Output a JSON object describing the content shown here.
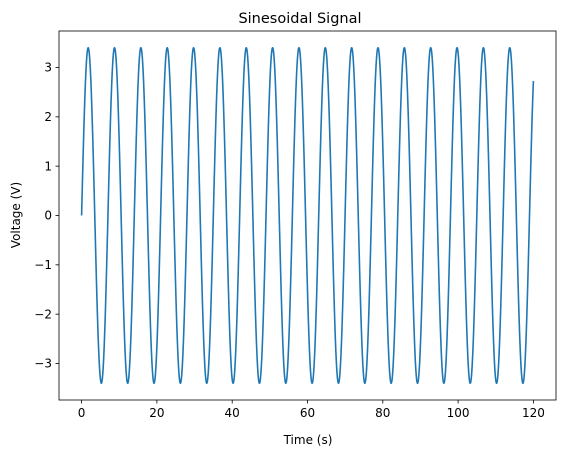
{
  "chart_data": {
    "type": "line",
    "title": "Sinesoidal Signal",
    "xlabel": "Time (s)",
    "ylabel": "Voltage (V)",
    "xlim": [
      -6,
      126
    ],
    "ylim": [
      -3.74,
      3.74
    ],
    "x_ticks": [
      0,
      20,
      40,
      60,
      80,
      100,
      120
    ],
    "y_ticks": [
      -3,
      -2,
      -1,
      0,
      1,
      2,
      3
    ],
    "y_tick_labels": [
      "−3",
      "−2",
      "−1",
      "0",
      "1",
      "2",
      "3"
    ],
    "grid": false,
    "series": [
      {
        "function": "sine",
        "amplitude": 3.4,
        "frequency_hz": 0.1429,
        "phase": 0,
        "x_start": 0,
        "x_end": 120,
        "color": "#1f77b4"
      }
    ]
  }
}
